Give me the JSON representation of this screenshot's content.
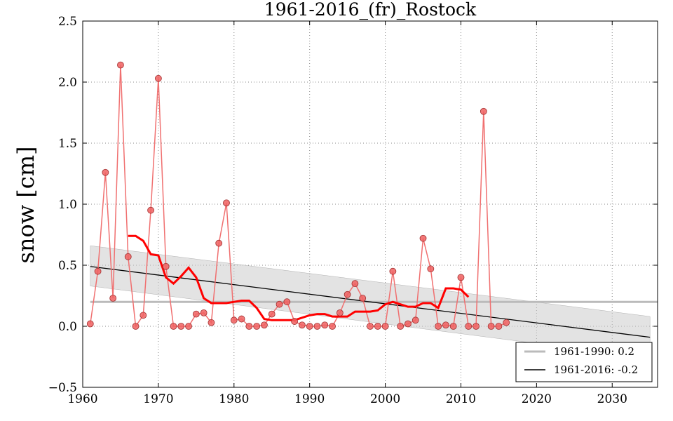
{
  "chart_data": {
    "type": "line",
    "title": "1961-2016_(fr)_Rostock",
    "xlabel": "",
    "ylabel": "snow [cm]",
    "xlim": [
      1960,
      2036
    ],
    "ylim": [
      -0.5,
      2.5
    ],
    "xticks": [
      1960,
      1970,
      1980,
      1990,
      2000,
      2010,
      2020,
      2030
    ],
    "yticks": [
      -0.5,
      0.0,
      0.5,
      1.0,
      1.5,
      2.0,
      2.5
    ],
    "ytick_labels": [
      "−0.5",
      "0.0",
      "0.5",
      "1.0",
      "1.5",
      "2.0",
      "2.5"
    ],
    "grid": true,
    "legend_position": "lower-right",
    "series": [
      {
        "kind": "annual",
        "color": "#ff0000",
        "x": [
          1961,
          1962,
          1963,
          1964,
          1965,
          1966,
          1967,
          1968,
          1969,
          1970,
          1971,
          1972,
          1973,
          1974,
          1975,
          1976,
          1977,
          1978,
          1979,
          1980,
          1981,
          1982,
          1983,
          1984,
          1985,
          1986,
          1987,
          1988,
          1989,
          1990,
          1991,
          1992,
          1993,
          1994,
          1995,
          1996,
          1997,
          1998,
          1999,
          2000,
          2001,
          2002,
          2003,
          2004,
          2005,
          2006,
          2007,
          2008,
          2009,
          2010,
          2011,
          2012,
          2013,
          2014,
          2015,
          2016
        ],
        "y": [
          0.02,
          0.45,
          1.26,
          0.23,
          2.14,
          0.57,
          0.0,
          0.09,
          0.95,
          2.03,
          0.49,
          0.0,
          0.0,
          0.0,
          0.1,
          0.11,
          0.03,
          0.68,
          1.01,
          0.05,
          0.06,
          0.0,
          0.0,
          0.01,
          0.1,
          0.18,
          0.2,
          0.04,
          0.01,
          0.0,
          0.0,
          0.01,
          0.0,
          0.11,
          0.26,
          0.35,
          0.23,
          0.0,
          0.0,
          0.0,
          0.45,
          0.0,
          0.02,
          0.05,
          0.72,
          0.47,
          0.0,
          0.01,
          0.0,
          0.4,
          0.0,
          0.0,
          1.76,
          0.0,
          0.0,
          0.03
        ]
      },
      {
        "kind": "running-mean",
        "color": "#ff0000",
        "x": [
          1966,
          1967,
          1968,
          1969,
          1970,
          1971,
          1972,
          1973,
          1974,
          1975,
          1976,
          1977,
          1978,
          1979,
          1980,
          1981,
          1982,
          1983,
          1984,
          1985,
          1986,
          1987,
          1988,
          1989,
          1990,
          1991,
          1992,
          1993,
          1994,
          1995,
          1996,
          1997,
          1998,
          1999,
          2000,
          2001,
          2002,
          2003,
          2004,
          2005,
          2006,
          2007,
          2008,
          2009,
          2010,
          2011
        ],
        "y": [
          0.74,
          0.74,
          0.7,
          0.59,
          0.58,
          0.4,
          0.35,
          0.41,
          0.48,
          0.4,
          0.23,
          0.19,
          0.19,
          0.19,
          0.2,
          0.21,
          0.21,
          0.15,
          0.06,
          0.05,
          0.05,
          0.05,
          0.05,
          0.07,
          0.09,
          0.1,
          0.1,
          0.08,
          0.08,
          0.08,
          0.12,
          0.12,
          0.12,
          0.13,
          0.18,
          0.2,
          0.18,
          0.16,
          0.16,
          0.19,
          0.19,
          0.15,
          0.31,
          0.31,
          0.3,
          0.24
        ]
      },
      {
        "kind": "reference",
        "name": "1961-1990: 0.2",
        "color": "#bbbbbb",
        "y": 0.2
      },
      {
        "kind": "trend",
        "name": "1961-2016: -0.2",
        "color": "#000000",
        "x": [
          1961,
          2035
        ],
        "y": [
          0.49,
          -0.09
        ],
        "band_upper": [
          0.66,
          0.08
        ],
        "band_lower": [
          0.33,
          -0.26
        ]
      }
    ]
  }
}
